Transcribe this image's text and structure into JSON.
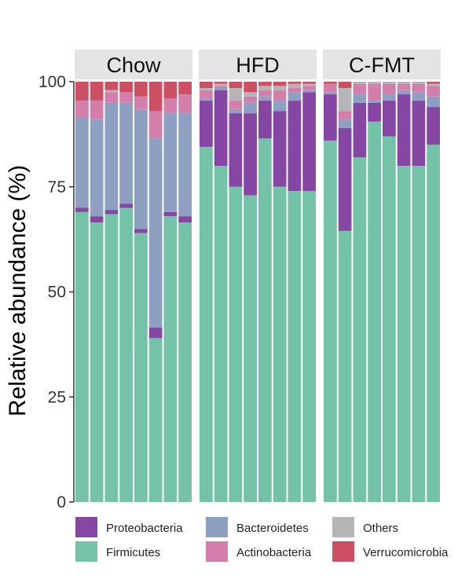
{
  "chart_data": {
    "type": "bar",
    "stacked": true,
    "ylabel": "Relative abundance (%)",
    "ylim": [
      0,
      100
    ],
    "yticks": [
      0,
      25,
      50,
      75,
      100
    ],
    "grid": false,
    "legend_position": "bottom",
    "facets": [
      "Chow",
      "HFD",
      "C-FMT"
    ],
    "series": [
      {
        "name": "Firmicutes",
        "color": "#74c2a7"
      },
      {
        "name": "Proteobacteria",
        "color": "#8547a3"
      },
      {
        "name": "Bacteroidetes",
        "color": "#8da0c2"
      },
      {
        "name": "Actinobacteria",
        "color": "#d47fab"
      },
      {
        "name": "Others",
        "color": "#b5b4b6"
      },
      {
        "name": "Verrucomicrobia",
        "color": "#cc4f63"
      }
    ],
    "legend_order": [
      "Proteobacteria",
      "Bacteroidetes",
      "Others",
      "Firmicutes",
      "Actinobacteria",
      "Verrucomicrobia"
    ],
    "values": {
      "Chow": [
        [
          69.0,
          1.0,
          21.5,
          4.0,
          0.0,
          4.5
        ],
        [
          66.5,
          1.5,
          23.0,
          4.5,
          0.0,
          4.5
        ],
        [
          68.5,
          1.0,
          25.5,
          2.5,
          0.5,
          2.0
        ],
        [
          70.0,
          1.0,
          24.0,
          2.5,
          0.0,
          2.5
        ],
        [
          64.0,
          1.0,
          28.5,
          3.0,
          0.0,
          3.5
        ],
        [
          39.0,
          2.5,
          45.0,
          6.5,
          0.0,
          7.0
        ],
        [
          68.0,
          1.0,
          23.5,
          3.5,
          0.0,
          4.0
        ],
        [
          66.5,
          1.5,
          24.5,
          4.5,
          0.0,
          3.0
        ]
      ],
      "HFD": [
        [
          84.5,
          11.0,
          0.5,
          2.0,
          0.5,
          1.5
        ],
        [
          80.0,
          18.0,
          0.5,
          0.5,
          0.5,
          0.5
        ],
        [
          75.0,
          17.5,
          1.0,
          2.0,
          3.0,
          1.5
        ],
        [
          73.0,
          19.5,
          2.5,
          1.5,
          1.0,
          2.5
        ],
        [
          86.5,
          9.0,
          1.0,
          1.5,
          1.0,
          1.0
        ],
        [
          75.0,
          18.0,
          2.5,
          2.5,
          1.0,
          1.0
        ],
        [
          74.0,
          21.5,
          2.0,
          1.0,
          1.0,
          0.5
        ],
        [
          74.0,
          23.5,
          0.5,
          1.0,
          0.5,
          0.5
        ]
      ],
      "C-FMT": [
        [
          86.0,
          11.0,
          0.5,
          2.0,
          0.0,
          0.5
        ],
        [
          64.5,
          24.5,
          2.0,
          2.0,
          5.5,
          1.5
        ],
        [
          82.0,
          13.0,
          2.0,
          2.5,
          0.5,
          0.0
        ],
        [
          90.5,
          4.5,
          0.5,
          4.0,
          0.5,
          0.0
        ],
        [
          87.0,
          8.5,
          1.5,
          2.5,
          0.5,
          0.0
        ],
        [
          80.0,
          17.0,
          1.0,
          1.5,
          0.5,
          0.0
        ],
        [
          80.0,
          15.5,
          2.0,
          2.0,
          0.5,
          0.0
        ],
        [
          85.0,
          9.0,
          2.5,
          2.5,
          0.5,
          0.5
        ]
      ]
    }
  }
}
